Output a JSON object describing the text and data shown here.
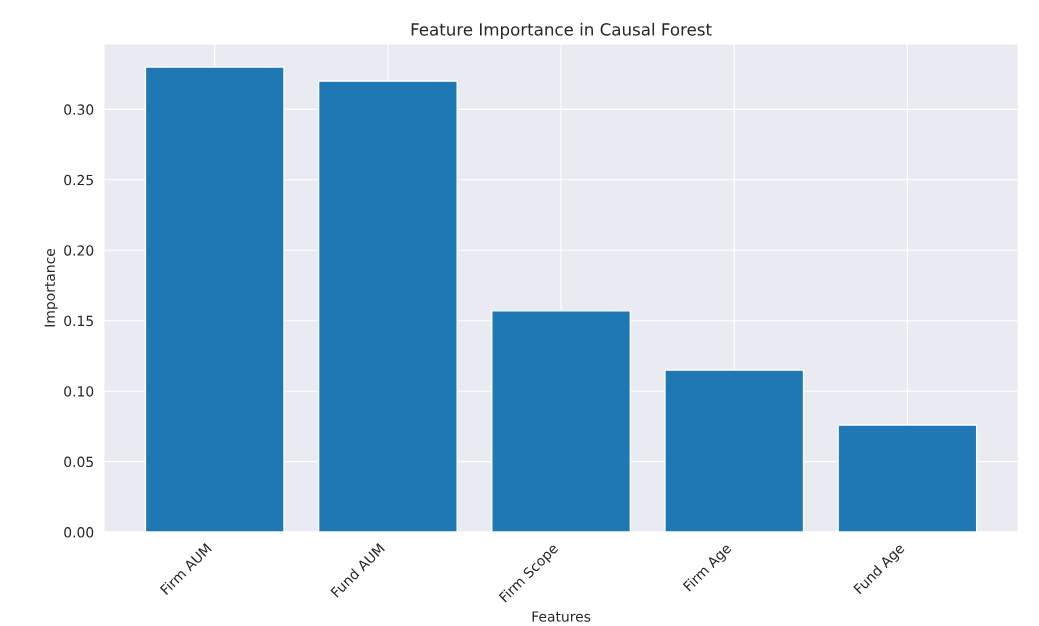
{
  "chart_data": {
    "type": "bar",
    "title": "Feature Importance in Causal Forest",
    "xlabel": "Features",
    "ylabel": "Importance",
    "categories": [
      "Firm AUM",
      "Fund AUM",
      "Firm Scope",
      "Firm Age",
      "Fund Age"
    ],
    "values": [
      0.33,
      0.32,
      0.157,
      0.115,
      0.076
    ],
    "color": "#1f77b4",
    "ylim": [
      0,
      0.3465
    ],
    "yticks": [
      {
        "value": 0,
        "label": "0.00"
      },
      {
        "value": 0.05,
        "label": "0.05"
      },
      {
        "value": 0.1,
        "label": "0.10"
      },
      {
        "value": 0.15,
        "label": "0.15"
      },
      {
        "value": 0.2,
        "label": "0.20"
      },
      {
        "value": 0.25,
        "label": "0.25"
      },
      {
        "value": 0.3,
        "label": "0.30"
      }
    ],
    "grid": true
  }
}
